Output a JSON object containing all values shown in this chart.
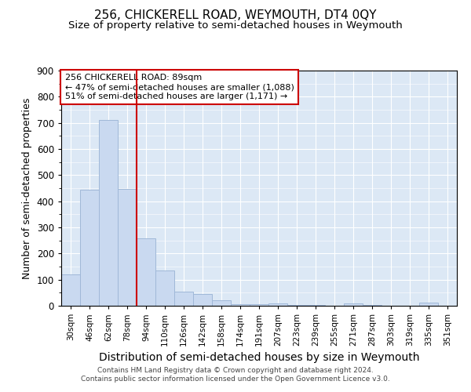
{
  "title": "256, CHICKERELL ROAD, WEYMOUTH, DT4 0QY",
  "subtitle": "Size of property relative to semi-detached houses in Weymouth",
  "xlabel": "Distribution of semi-detached houses by size in Weymouth",
  "ylabel": "Number of semi-detached properties",
  "bar_labels": [
    "30sqm",
    "46sqm",
    "62sqm",
    "78sqm",
    "94sqm",
    "110sqm",
    "126sqm",
    "142sqm",
    "158sqm",
    "174sqm",
    "191sqm",
    "207sqm",
    "223sqm",
    "239sqm",
    "255sqm",
    "271sqm",
    "287sqm",
    "303sqm",
    "319sqm",
    "335sqm",
    "351sqm"
  ],
  "bar_values": [
    120,
    445,
    710,
    447,
    258,
    135,
    55,
    45,
    20,
    5,
    5,
    10,
    3,
    2,
    1,
    8,
    2,
    1,
    1,
    12,
    1
  ],
  "bar_color": "#c9d9f0",
  "bar_edge_color": "#a0b8d8",
  "vline_color": "#cc0000",
  "annotation_text": "256 CHICKERELL ROAD: 89sqm\n← 47% of semi-detached houses are smaller (1,088)\n51% of semi-detached houses are larger (1,171) →",
  "annotation_box_color": "#ffffff",
  "annotation_box_edge": "#cc0000",
  "ylim": [
    0,
    900
  ],
  "yticks": [
    0,
    100,
    200,
    300,
    400,
    500,
    600,
    700,
    800,
    900
  ],
  "background_color": "#dce8f5",
  "footer_text": "Contains HM Land Registry data © Crown copyright and database right 2024.\nContains public sector information licensed under the Open Government Licence v3.0.",
  "title_fontsize": 11,
  "subtitle_fontsize": 9.5,
  "xlabel_fontsize": 10,
  "ylabel_fontsize": 9
}
